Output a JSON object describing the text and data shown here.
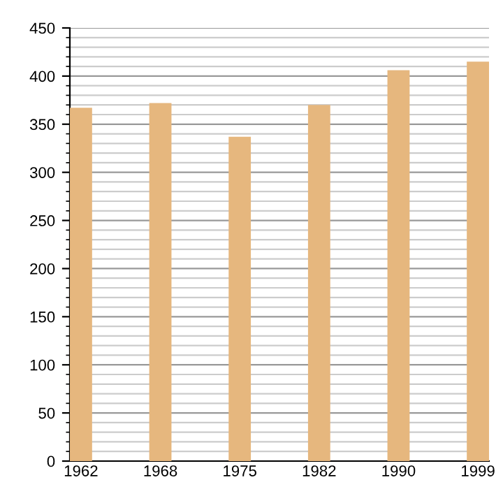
{
  "chart_data": {
    "type": "bar",
    "categories": [
      "1962",
      "1968",
      "1975",
      "1982",
      "1990",
      "1999"
    ],
    "values": [
      367,
      372,
      337,
      370,
      406,
      415
    ],
    "color": "#e6b77e",
    "ylim": [
      0,
      450
    ],
    "yticks": [
      0,
      50,
      100,
      150,
      200,
      250,
      300,
      350,
      400,
      450
    ],
    "grid": "y"
  }
}
